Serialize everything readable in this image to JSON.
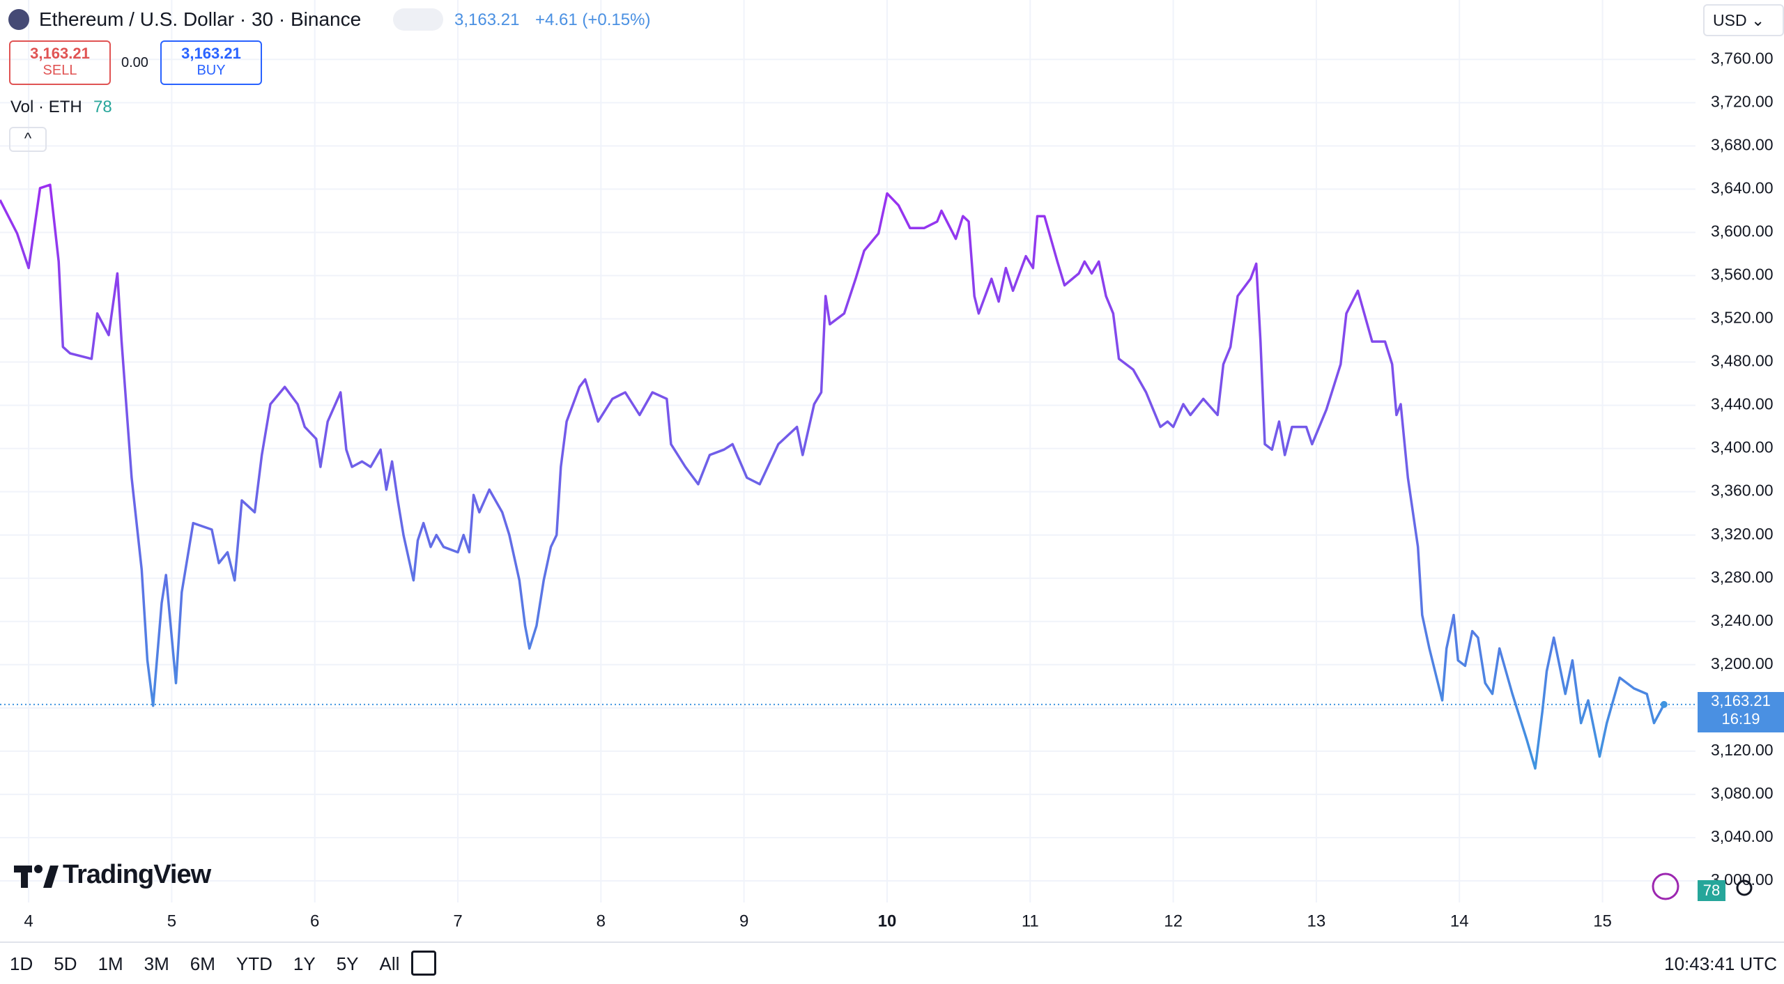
{
  "header": {
    "title": "Ethereum / U.S. Dollar · 30 · Binance",
    "price": "3,163.21",
    "change": "+4.61 (+0.15%)",
    "sell_price": "3,163.21",
    "sell": "SELL",
    "spread": "0.00",
    "buy_price": "3,163.21",
    "buy": "BUY",
    "volume_label": "Vol · ETH",
    "volume_value": "78",
    "currency": "USD"
  },
  "logo": "TradingView",
  "volume_badge": "78",
  "toolbar": {
    "ranges": [
      "1D",
      "5D",
      "1M",
      "3M",
      "6M",
      "YTD",
      "1Y",
      "5Y",
      "All"
    ],
    "time": "10:43:41 UTC"
  },
  "chart_data": {
    "type": "line",
    "color_top": "#9a2ff0",
    "color_bottom": "#3f94e0",
    "grid": true,
    "emphasized_xtick": 10,
    "last_price_label": {
      "price": "3,163.21",
      "countdown": "16:19"
    },
    "xlim": [
      3.8,
      15.65
    ],
    "xticks": [
      4,
      5,
      6,
      7,
      8,
      9,
      10,
      11,
      12,
      13,
      14,
      15
    ],
    "ylim": [
      2980,
      3815
    ],
    "yticks": [
      {
        "value": 3000,
        "label": "3,000.00"
      },
      {
        "value": 3040,
        "label": "3,040.00"
      },
      {
        "value": 3080,
        "label": "3,080.00"
      },
      {
        "value": 3120,
        "label": "3,120.00"
      },
      {
        "value": 3160,
        "label": "3,160.00"
      },
      {
        "value": 3200,
        "label": "3,200.00"
      },
      {
        "value": 3240,
        "label": "3,240.00"
      },
      {
        "value": 3280,
        "label": "3,280.00"
      },
      {
        "value": 3320,
        "label": "3,320.00"
      },
      {
        "value": 3360,
        "label": "3,360.00"
      },
      {
        "value": 3400,
        "label": "3,400.00"
      },
      {
        "value": 3440,
        "label": "3,440.00"
      },
      {
        "value": 3480,
        "label": "3,480.00"
      },
      {
        "value": 3520,
        "label": "3,520.00"
      },
      {
        "value": 3560,
        "label": "3,560.00"
      },
      {
        "value": 3600,
        "label": "3,600.00"
      },
      {
        "value": 3640,
        "label": "3,640.00"
      },
      {
        "value": 3680,
        "label": "3,680.00"
      },
      {
        "value": 3720,
        "label": "3,720.00"
      },
      {
        "value": 3760,
        "label": "3,760.00"
      }
    ],
    "x": [
      3.8,
      3.92,
      4.0,
      4.08,
      4.15,
      4.21,
      4.24,
      4.29,
      4.44,
      4.48,
      4.56,
      4.62,
      4.65,
      4.72,
      4.79,
      4.83,
      4.87,
      4.93,
      4.96,
      5.03,
      5.07,
      5.15,
      5.28,
      5.33,
      5.39,
      5.44,
      5.49,
      5.58,
      5.63,
      5.69,
      5.79,
      5.88,
      5.93,
      6.01,
      6.04,
      6.09,
      6.18,
      6.22,
      6.26,
      6.33,
      6.39,
      6.46,
      6.5,
      6.54,
      6.58,
      6.62,
      6.69,
      6.72,
      6.76,
      6.81,
      6.85,
      6.9,
      7.0,
      7.04,
      7.08,
      7.11,
      7.15,
      7.22,
      7.31,
      7.36,
      7.43,
      7.47,
      7.5,
      7.55,
      7.6,
      7.65,
      7.69,
      7.72,
      7.76,
      7.85,
      7.89,
      7.98,
      8.08,
      8.17,
      8.27,
      8.36,
      8.46,
      8.49,
      8.59,
      8.68,
      8.76,
      8.86,
      8.92,
      9.02,
      9.11,
      9.24,
      9.37,
      9.41,
      9.49,
      9.54,
      9.57,
      9.6,
      9.7,
      9.78,
      9.84,
      9.94,
      10.0,
      10.08,
      10.16,
      10.26,
      10.35,
      10.38,
      10.48,
      10.53,
      10.57,
      10.61,
      10.64,
      10.73,
      10.78,
      10.83,
      10.88,
      10.97,
      11.02,
      11.05,
      11.1,
      11.19,
      11.24,
      11.34,
      11.38,
      11.43,
      11.48,
      11.53,
      11.58,
      11.62,
      11.72,
      11.81,
      11.91,
      11.96,
      12.0,
      12.07,
      12.12,
      12.21,
      12.31,
      12.35,
      12.4,
      12.45,
      12.54,
      12.58,
      12.61,
      12.64,
      12.69,
      12.74,
      12.78,
      12.83,
      12.93,
      12.97,
      13.07,
      13.17,
      13.21,
      13.29,
      13.39,
      13.48,
      13.53,
      13.56,
      13.59,
      13.64,
      13.71,
      13.74,
      13.79,
      13.88,
      13.91,
      13.96,
      13.99,
      14.04,
      14.09,
      14.13,
      14.18,
      14.23,
      14.28,
      14.37,
      14.47,
      14.53,
      14.58,
      14.61,
      14.66,
      14.74,
      14.79,
      14.85,
      14.9,
      14.98,
      15.03,
      15.12,
      15.22,
      15.31,
      15.36,
      15.43
    ],
    "values": [
      3630,
      3599,
      3567,
      3641,
      3644,
      3573,
      3494,
      3488,
      3483,
      3525,
      3505,
      3562,
      3499,
      3373,
      3288,
      3204,
      3162,
      3257,
      3283,
      3183,
      3267,
      3331,
      3325,
      3294,
      3304,
      3278,
      3352,
      3341,
      3394,
      3441,
      3457,
      3441,
      3420,
      3409,
      3383,
      3425,
      3452,
      3399,
      3383,
      3388,
      3383,
      3399,
      3362,
      3388,
      3352,
      3320,
      3278,
      3315,
      3331,
      3309,
      3320,
      3309,
      3304,
      3320,
      3304,
      3357,
      3341,
      3362,
      3341,
      3320,
      3278,
      3236,
      3215,
      3236,
      3278,
      3309,
      3320,
      3383,
      3425,
      3457,
      3464,
      3425,
      3446,
      3452,
      3431,
      3452,
      3446,
      3404,
      3383,
      3367,
      3394,
      3399,
      3404,
      3373,
      3367,
      3404,
      3420,
      3394,
      3441,
      3452,
      3541,
      3515,
      3525,
      3557,
      3583,
      3599,
      3636,
      3625,
      3604,
      3604,
      3610,
      3620,
      3594,
      3615,
      3610,
      3541,
      3525,
      3557,
      3536,
      3567,
      3546,
      3578,
      3567,
      3615,
      3615,
      3573,
      3551,
      3562,
      3573,
      3562,
      3573,
      3541,
      3525,
      3483,
      3473,
      3452,
      3420,
      3425,
      3420,
      3441,
      3431,
      3446,
      3431,
      3478,
      3494,
      3541,
      3557,
      3571,
      3499,
      3404,
      3399,
      3425,
      3394,
      3420,
      3420,
      3404,
      3436,
      3478,
      3525,
      3546,
      3499,
      3499,
      3478,
      3431,
      3441,
      3373,
      3309,
      3246,
      3215,
      3167,
      3215,
      3246,
      3204,
      3199,
      3231,
      3225,
      3183,
      3173,
      3215,
      3173,
      3131,
      3104,
      3157,
      3194,
      3225,
      3173,
      3204,
      3146,
      3167,
      3115,
      3146,
      3188,
      3178,
      3173,
      3146,
      3163.21
    ]
  }
}
